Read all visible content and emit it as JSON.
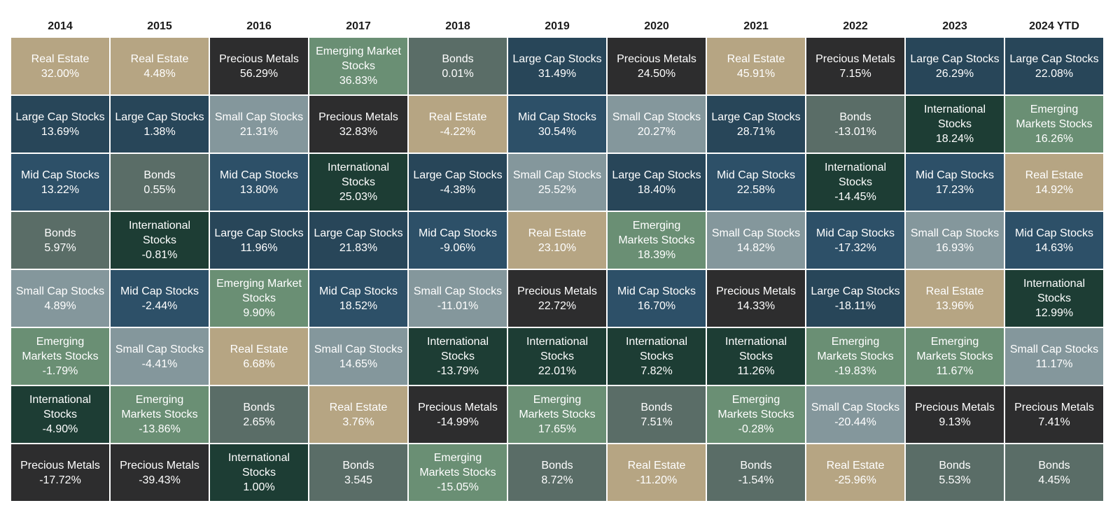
{
  "colors": {
    "Real Estate": "#b6a583",
    "Large Cap": "#284659",
    "Mid Cap": "#2d5068",
    "Bonds": "#5a6d67",
    "Small Cap": "#84979c",
    "Emerging": "#6a8f74",
    "International": "#1d3d34",
    "Precious Metals": "#2d2d2e"
  },
  "chart_data": {
    "type": "table",
    "columns": [
      {
        "year": "2014",
        "cells": [
          {
            "label": "Real Estate",
            "value": "32.00%",
            "cls": "Real Estate"
          },
          {
            "label": "Large Cap Stocks",
            "value": "13.69%",
            "cls": "Large Cap"
          },
          {
            "label": "Mid Cap Stocks",
            "value": "13.22%",
            "cls": "Mid Cap"
          },
          {
            "label": "Bonds",
            "value": "5.97%",
            "cls": "Bonds"
          },
          {
            "label": "Small Cap Stocks",
            "value": "4.89%",
            "cls": "Small Cap"
          },
          {
            "label": "Emerging Markets Stocks",
            "value": "-1.79%",
            "cls": "Emerging"
          },
          {
            "label": "International Stocks",
            "value": "-4.90%",
            "cls": "International"
          },
          {
            "label": "Precious Metals",
            "value": "-17.72%",
            "cls": "Precious Metals"
          }
        ]
      },
      {
        "year": "2015",
        "cells": [
          {
            "label": "Real Estate",
            "value": "4.48%",
            "cls": "Real Estate"
          },
          {
            "label": "Large Cap Stocks",
            "value": "1.38%",
            "cls": "Large Cap"
          },
          {
            "label": "Bonds",
            "value": "0.55%",
            "cls": "Bonds"
          },
          {
            "label": "International Stocks",
            "value": "-0.81%",
            "cls": "International"
          },
          {
            "label": "Mid Cap Stocks",
            "value": "-2.44%",
            "cls": "Mid Cap"
          },
          {
            "label": "Small Cap Stocks",
            "value": "-4.41%",
            "cls": "Small Cap"
          },
          {
            "label": "Emerging Markets Stocks",
            "value": "-13.86%",
            "cls": "Emerging"
          },
          {
            "label": "Precious Metals",
            "value": "-39.43%",
            "cls": "Precious Metals"
          }
        ]
      },
      {
        "year": "2016",
        "cells": [
          {
            "label": "Precious Metals",
            "value": "56.29%",
            "cls": "Precious Metals"
          },
          {
            "label": "Small Cap Stocks",
            "value": "21.31%",
            "cls": "Small Cap"
          },
          {
            "label": "Mid Cap Stocks",
            "value": "13.80%",
            "cls": "Mid Cap"
          },
          {
            "label": "Large Cap Stocks",
            "value": "11.96%",
            "cls": "Large Cap"
          },
          {
            "label": "Emerging Market Stocks",
            "value": "9.90%",
            "cls": "Emerging"
          },
          {
            "label": "Real Estate",
            "value": "6.68%",
            "cls": "Real Estate"
          },
          {
            "label": "Bonds",
            "value": "2.65%",
            "cls": "Bonds"
          },
          {
            "label": "International Stocks",
            "value": "1.00%",
            "cls": "International"
          }
        ]
      },
      {
        "year": "2017",
        "cells": [
          {
            "label": "Emerging Market Stocks",
            "value": "36.83%",
            "cls": "Emerging"
          },
          {
            "label": "Precious Metals",
            "value": "32.83%",
            "cls": "Precious Metals"
          },
          {
            "label": "International Stocks",
            "value": "25.03%",
            "cls": "International"
          },
          {
            "label": "Large Cap Stocks",
            "value": "21.83%",
            "cls": "Large Cap"
          },
          {
            "label": "Mid Cap Stocks",
            "value": "18.52%",
            "cls": "Mid Cap"
          },
          {
            "label": "Small Cap Stocks",
            "value": "14.65%",
            "cls": "Small Cap"
          },
          {
            "label": "Real Estate",
            "value": "3.76%",
            "cls": "Real Estate"
          },
          {
            "label": "Bonds",
            "value": "3.545",
            "cls": "Bonds"
          }
        ]
      },
      {
        "year": "2018",
        "cells": [
          {
            "label": "Bonds",
            "value": "0.01%",
            "cls": "Bonds"
          },
          {
            "label": "Real Estate",
            "value": "-4.22%",
            "cls": "Real Estate"
          },
          {
            "label": "Large Cap Stocks",
            "value": "-4.38%",
            "cls": "Large Cap"
          },
          {
            "label": "Mid Cap Stocks",
            "value": "-9.06%",
            "cls": "Mid Cap"
          },
          {
            "label": "Small Cap Stocks",
            "value": "-11.01%",
            "cls": "Small Cap"
          },
          {
            "label": "International Stocks",
            "value": "-13.79%",
            "cls": "International"
          },
          {
            "label": "Precious Metals",
            "value": "-14.99%",
            "cls": "Precious Metals"
          },
          {
            "label": "Emerging Markets Stocks",
            "value": "-15.05%",
            "cls": "Emerging"
          }
        ]
      },
      {
        "year": "2019",
        "cells": [
          {
            "label": "Large Cap Stocks",
            "value": "31.49%",
            "cls": "Large Cap"
          },
          {
            "label": "Mid Cap Stocks",
            "value": "30.54%",
            "cls": "Mid Cap"
          },
          {
            "label": "Small Cap Stocks",
            "value": "25.52%",
            "cls": "Small Cap"
          },
          {
            "label": "Real Estate",
            "value": "23.10%",
            "cls": "Real Estate"
          },
          {
            "label": "Precious Metals",
            "value": "22.72%",
            "cls": "Precious Metals"
          },
          {
            "label": "International Stocks",
            "value": "22.01%",
            "cls": "International"
          },
          {
            "label": "Emerging Markets Stocks",
            "value": "17.65%",
            "cls": "Emerging"
          },
          {
            "label": "Bonds",
            "value": "8.72%",
            "cls": "Bonds"
          }
        ]
      },
      {
        "year": "2020",
        "cells": [
          {
            "label": "Precious Metals",
            "value": "24.50%",
            "cls": "Precious Metals"
          },
          {
            "label": "Small Cap Stocks",
            "value": "20.27%",
            "cls": "Small Cap"
          },
          {
            "label": "Large Cap Stocks",
            "value": "18.40%",
            "cls": "Large Cap"
          },
          {
            "label": "Emerging Markets Stocks",
            "value": "18.39%",
            "cls": "Emerging"
          },
          {
            "label": "Mid Cap Stocks",
            "value": "16.70%",
            "cls": "Mid Cap"
          },
          {
            "label": "International Stocks",
            "value": "7.82%",
            "cls": "International"
          },
          {
            "label": "Bonds",
            "value": "7.51%",
            "cls": "Bonds"
          },
          {
            "label": "Real Estate",
            "value": "-11.20%",
            "cls": "Real Estate"
          }
        ]
      },
      {
        "year": "2021",
        "cells": [
          {
            "label": "Real Estate",
            "value": "45.91%",
            "cls": "Real Estate"
          },
          {
            "label": "Large Cap Stocks",
            "value": "28.71%",
            "cls": "Large Cap"
          },
          {
            "label": "Mid Cap Stocks",
            "value": "22.58%",
            "cls": "Mid Cap"
          },
          {
            "label": "Small Cap Stocks",
            "value": "14.82%",
            "cls": "Small Cap"
          },
          {
            "label": "Precious Metals",
            "value": "14.33%",
            "cls": "Precious Metals"
          },
          {
            "label": "International Stocks",
            "value": "11.26%",
            "cls": "International"
          },
          {
            "label": "Emerging Markets Stocks",
            "value": "-0.28%",
            "cls": "Emerging"
          },
          {
            "label": "Bonds",
            "value": "-1.54%",
            "cls": "Bonds"
          }
        ]
      },
      {
        "year": "2022",
        "cells": [
          {
            "label": "Precious Metals",
            "value": "7.15%",
            "cls": "Precious Metals"
          },
          {
            "label": "Bonds",
            "value": "-13.01%",
            "cls": "Bonds"
          },
          {
            "label": "International Stocks",
            "value": "-14.45%",
            "cls": "International"
          },
          {
            "label": "Mid Cap Stocks",
            "value": "-17.32%",
            "cls": "Mid Cap"
          },
          {
            "label": "Large Cap Stocks",
            "value": "-18.11%",
            "cls": "Large Cap"
          },
          {
            "label": "Emerging Markets Stocks",
            "value": "-19.83%",
            "cls": "Emerging"
          },
          {
            "label": "Small Cap Stocks",
            "value": "-20.44%",
            "cls": "Small Cap"
          },
          {
            "label": "Real Estate",
            "value": "-25.96%",
            "cls": "Real Estate"
          }
        ]
      },
      {
        "year": "2023",
        "cells": [
          {
            "label": "Large Cap Stocks",
            "value": "26.29%",
            "cls": "Large Cap"
          },
          {
            "label": "International Stocks",
            "value": "18.24%",
            "cls": "International"
          },
          {
            "label": "Mid Cap Stocks",
            "value": "17.23%",
            "cls": "Mid Cap"
          },
          {
            "label": "Small Cap Stocks",
            "value": "16.93%",
            "cls": "Small Cap"
          },
          {
            "label": "Real Estate",
            "value": "13.96%",
            "cls": "Real Estate"
          },
          {
            "label": "Emerging Markets Stocks",
            "value": "11.67%",
            "cls": "Emerging"
          },
          {
            "label": "Precious Metals",
            "value": "9.13%",
            "cls": "Precious Metals"
          },
          {
            "label": "Bonds",
            "value": "5.53%",
            "cls": "Bonds"
          }
        ]
      },
      {
        "year": "2024 YTD",
        "cells": [
          {
            "label": "Large Cap Stocks",
            "value": "22.08%",
            "cls": "Large Cap"
          },
          {
            "label": "Emerging Markets Stocks",
            "value": "16.26%",
            "cls": "Emerging"
          },
          {
            "label": "Real Estate",
            "value": "14.92%",
            "cls": "Real Estate"
          },
          {
            "label": "Mid Cap Stocks",
            "value": "14.63%",
            "cls": "Mid Cap"
          },
          {
            "label": "International Stocks",
            "value": "12.99%",
            "cls": "International"
          },
          {
            "label": "Small Cap Stocks",
            "value": "11.17%",
            "cls": "Small Cap"
          },
          {
            "label": "Precious Metals",
            "value": "7.41%",
            "cls": "Precious Metals"
          },
          {
            "label": "Bonds",
            "value": "4.45%",
            "cls": "Bonds"
          }
        ]
      }
    ]
  }
}
